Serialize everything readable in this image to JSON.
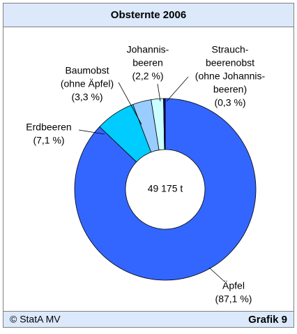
{
  "chart_data": {
    "type": "donut",
    "title": "Obsternte 2006",
    "center_label": "49 175 t",
    "categories": [
      [
        "Äpfel"
      ],
      [
        "Erdbeeren"
      ],
      [
        "Baumobst",
        "(ohne Äpfel)"
      ],
      [
        "Johannis-",
        "beeren"
      ],
      [
        "Strauch-",
        "beerenobst",
        "(ohne Johannis-",
        "beeren)"
      ]
    ],
    "values": [
      87.1,
      7.1,
      3.3,
      2.2,
      0.3
    ],
    "value_labels": [
      "(87,1 %)",
      "(7,1 %)",
      "(3,3 %)",
      "(2,2 %)",
      "(0,3 %)"
    ],
    "colors": [
      "#3366ff",
      "#00ccff",
      "#99ccff",
      "#ccffff",
      "#000080"
    ]
  },
  "footer": {
    "source": "© StatA MV",
    "figure": "Grafik 9"
  }
}
